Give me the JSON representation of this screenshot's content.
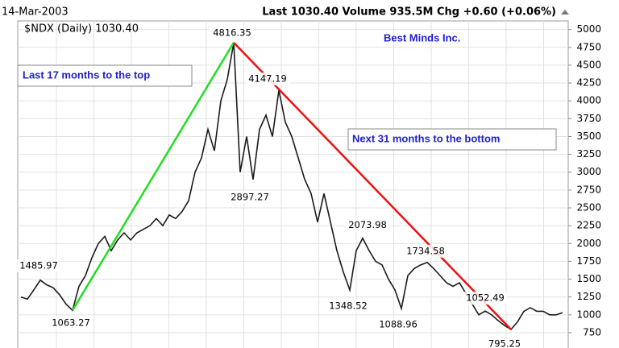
{
  "chart_data": {
    "type": "line",
    "date": "14-Mar-2003",
    "header": "Last 1030.40  Volume 935.5M  Chg +0.60 (+0.06%)",
    "legend": "$NDX (Daily) 1030.40",
    "title": "Best Minds Inc.",
    "notes": [
      "Last 17 months to the top",
      "Next 31 months to the bottom"
    ],
    "series": [
      {
        "name": "$NDX",
        "color": "#1a1a1a",
        "values": [
          1250,
          1220,
          1350,
          1485.97,
          1420,
          1380,
          1280,
          1150,
          1063.27,
          1400,
          1550,
          1800,
          2000,
          2100,
          1900,
          2050,
          2150,
          2050,
          2150,
          2200,
          2250,
          2350,
          2250,
          2400,
          2350,
          2450,
          2600,
          3000,
          3200,
          3600,
          3300,
          4000,
          4300,
          4816.35,
          3000,
          3500,
          2897.27,
          3600,
          3800,
          3500,
          4147.19,
          3700,
          3500,
          3200,
          2900,
          2700,
          2300,
          2700,
          2300,
          1900,
          1600,
          1348.52,
          1900,
          2073.98,
          1900,
          1750,
          1700,
          1500,
          1350,
          1088.96,
          1550,
          1650,
          1700,
          1734.58,
          1650,
          1550,
          1450,
          1400,
          1450,
          1300,
          1150,
          1000,
          1052.49,
          1000,
          920,
          850,
          795.25,
          900,
          1050,
          1100,
          1050,
          1050,
          1000,
          1000,
          1030.4
        ]
      }
    ],
    "annotations": [
      {
        "label": "1485.97",
        "index": 3
      },
      {
        "label": "1063.27",
        "index": 8
      },
      {
        "label": "4816.35",
        "index": 33
      },
      {
        "label": "2897.27",
        "index": 36
      },
      {
        "label": "4147.19",
        "index": 40
      },
      {
        "label": "1348.52",
        "index": 51
      },
      {
        "label": "2073.98",
        "index": 53
      },
      {
        "label": "1088.96",
        "index": 59
      },
      {
        "label": "1734.58",
        "index": 63
      },
      {
        "label": "1052.49",
        "index": 72
      },
      {
        "label": "795.25",
        "index": 76
      }
    ],
    "trend_lines": [
      {
        "color": "#22dd22",
        "from": 8,
        "to": 33
      },
      {
        "color": "#ee1111",
        "from": 33,
        "to": 76
      }
    ],
    "ylim": [
      490,
      5075
    ],
    "yticks": [
      750,
      1000,
      1250,
      1500,
      1750,
      2000,
      2250,
      2500,
      2750,
      3000,
      3250,
      3500,
      3750,
      4000,
      4250,
      4500,
      4750,
      5000
    ],
    "grid": true
  }
}
